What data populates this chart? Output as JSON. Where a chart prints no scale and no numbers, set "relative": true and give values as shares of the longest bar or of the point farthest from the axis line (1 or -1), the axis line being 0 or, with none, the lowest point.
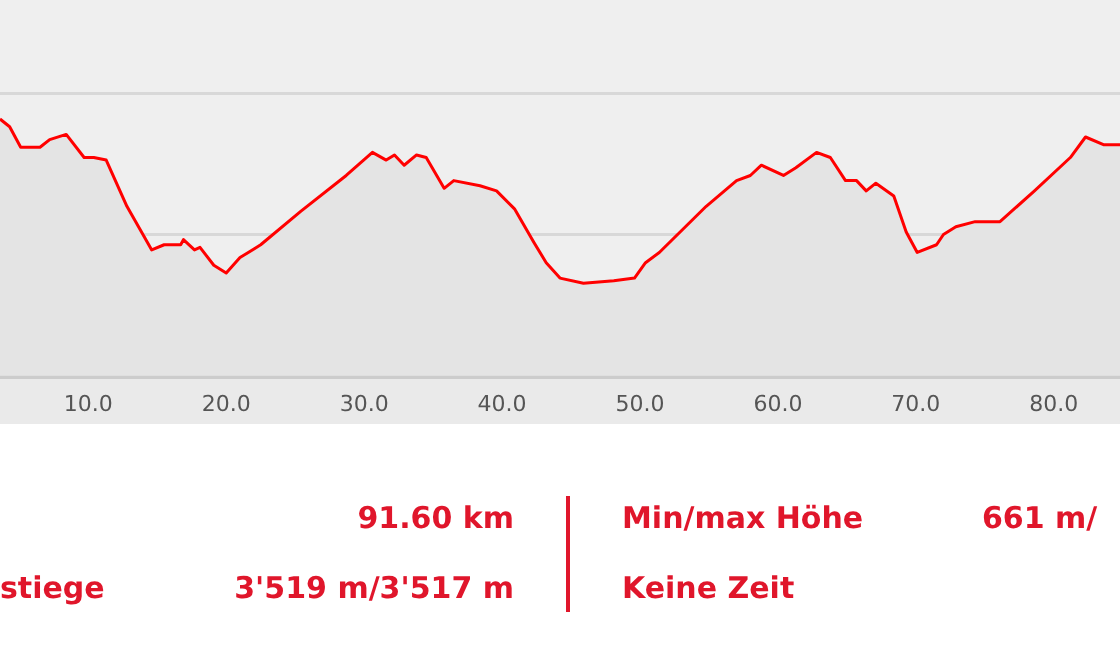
{
  "chart_data": {
    "type": "area",
    "relative": true,
    "x": [
      3.6,
      4.3,
      5.1,
      6.5,
      7.2,
      8.4,
      9.7,
      10.4,
      11.3,
      12.8,
      14.6,
      15.5,
      16.7,
      16.9,
      17.7,
      18.1,
      19.1,
      20.0,
      21.0,
      22.5,
      25.4,
      28.7,
      30.6,
      31.6,
      32.2,
      32.9,
      33.8,
      34.5,
      35.8,
      36.5,
      38.4,
      39.6,
      40.9,
      42.3,
      43.2,
      44.2,
      45.9,
      48.1,
      49.6,
      50.4,
      51.4,
      54.8,
      57.0,
      58.0,
      58.8,
      60.4,
      61.3,
      62.8,
      63.8,
      64.9,
      65.7,
      66.4,
      67.1,
      68.4,
      69.3,
      70.1,
      71.5,
      72.0,
      72.9,
      74.3,
      76.1,
      78.6,
      81.2,
      82.3,
      83.6,
      84.8
    ],
    "series": [
      {
        "color": "#ff0000",
        "values": [
          1,
          0.97,
          0.89,
          0.89,
          0.92,
          0.94,
          0.85,
          0.85,
          0.84,
          0.66,
          0.49,
          0.51,
          0.51,
          0.53,
          0.49,
          0.5,
          0.43,
          0.4,
          0.46,
          0.51,
          0.64,
          0.78,
          0.87,
          0.84,
          0.86,
          0.82,
          0.86,
          0.85,
          0.73,
          0.76,
          0.74,
          0.72,
          0.65,
          0.52,
          0.44,
          0.38,
          0.36,
          0.37,
          0.38,
          0.44,
          0.48,
          0.66,
          0.76,
          0.78,
          0.82,
          0.78,
          0.81,
          0.87,
          0.85,
          0.76,
          0.76,
          0.72,
          0.75,
          0.7,
          0.56,
          0.48,
          0.51,
          0.55,
          0.58,
          0.6,
          0.6,
          0.72,
          0.85,
          0.93,
          0.9,
          0.9
        ]
      }
    ],
    "xlim": [
      3.6,
      84.8
    ],
    "xticks": [
      {
        "value": 10,
        "label": "10.0"
      },
      {
        "value": 20,
        "label": "20.0"
      },
      {
        "value": 30,
        "label": "30.0"
      },
      {
        "value": 40,
        "label": "40.0"
      },
      {
        "value": 50,
        "label": "50.0"
      },
      {
        "value": 60,
        "label": "60.0"
      },
      {
        "value": 70,
        "label": "70.0"
      },
      {
        "value": 80,
        "label": "80.0"
      }
    ],
    "ref_lines": [
      {
        "axis": "y",
        "value": 0.55,
        "color": "#d8d8d8"
      },
      {
        "axis": "y",
        "value": 1.1,
        "color": "#d8d8d8"
      }
    ],
    "annotations": [
      "91.60 km",
      "Min/max Höhe",
      "661 m/",
      "stiege",
      "3'519 m/3'517 m",
      "Keine Zeit"
    ]
  }
}
